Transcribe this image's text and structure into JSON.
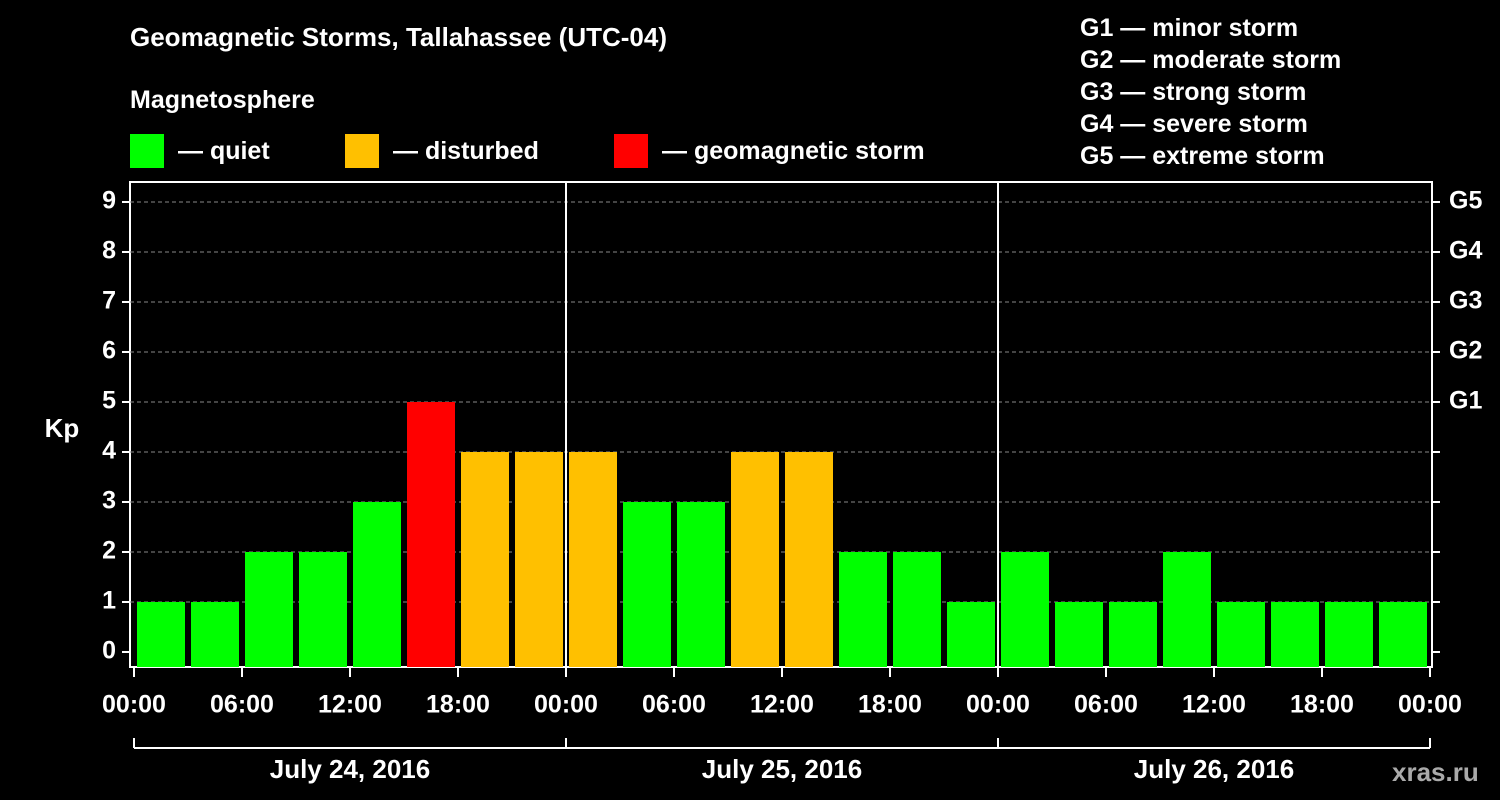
{
  "header": {
    "title": "Geomagnetic Storms, Tallahassee (UTC-04)",
    "magnetosphere_title": "Magnetosphere"
  },
  "legend": [
    {
      "label": "— quiet",
      "color": "#00ff00"
    },
    {
      "label": "— disturbed",
      "color": "#ffc000"
    },
    {
      "label": "— geomagnetic storm",
      "color": "#ff0000"
    }
  ],
  "storm_scale": [
    "G1 — minor storm",
    "G2 — moderate storm",
    "G3 — strong storm",
    "G4 — severe storm",
    "G5 — extreme storm"
  ],
  "watermark": "xras.ru",
  "chart_data": {
    "type": "bar",
    "title": "Geomagnetic Storms, Tallahassee (UTC-04)",
    "ylabel": "Kp",
    "ylim": [
      0,
      9
    ],
    "y_ticks": [
      "0",
      "1",
      "2",
      "3",
      "4",
      "5",
      "6",
      "7",
      "8",
      "9"
    ],
    "right_ticks": [
      {
        "kp": 5,
        "label": "G1"
      },
      {
        "kp": 6,
        "label": "G2"
      },
      {
        "kp": 7,
        "label": "G3"
      },
      {
        "kp": 8,
        "label": "G4"
      },
      {
        "kp": 9,
        "label": "G5"
      }
    ],
    "x_tick_labels": [
      "00:00",
      "06:00",
      "12:00",
      "18:00",
      "00:00",
      "06:00",
      "12:00",
      "18:00",
      "00:00",
      "06:00",
      "12:00",
      "18:00",
      "00:00"
    ],
    "days": [
      "July 24, 2016",
      "July 25, 2016",
      "July 26, 2016"
    ],
    "colors": {
      "quiet": "#00ff00",
      "disturbed": "#ffc000",
      "storm": "#ff0000"
    },
    "grid": true,
    "bars": [
      {
        "day": "July 24, 2016",
        "start": "00:00",
        "kp": 1,
        "level": "quiet"
      },
      {
        "day": "July 24, 2016",
        "start": "03:00",
        "kp": 1,
        "level": "quiet"
      },
      {
        "day": "July 24, 2016",
        "start": "06:00",
        "kp": 2,
        "level": "quiet"
      },
      {
        "day": "July 24, 2016",
        "start": "09:00",
        "kp": 2,
        "level": "quiet"
      },
      {
        "day": "July 24, 2016",
        "start": "12:00",
        "kp": 3,
        "level": "quiet"
      },
      {
        "day": "July 24, 2016",
        "start": "15:00",
        "kp": 5,
        "level": "storm"
      },
      {
        "day": "July 24, 2016",
        "start": "18:00",
        "kp": 4,
        "level": "disturbed"
      },
      {
        "day": "July 24, 2016",
        "start": "21:00",
        "kp": 4,
        "level": "disturbed"
      },
      {
        "day": "July 25, 2016",
        "start": "00:00",
        "kp": 4,
        "level": "disturbed"
      },
      {
        "day": "July 25, 2016",
        "start": "03:00",
        "kp": 3,
        "level": "quiet"
      },
      {
        "day": "July 25, 2016",
        "start": "06:00",
        "kp": 3,
        "level": "quiet"
      },
      {
        "day": "July 25, 2016",
        "start": "09:00",
        "kp": 4,
        "level": "disturbed"
      },
      {
        "day": "July 25, 2016",
        "start": "12:00",
        "kp": 4,
        "level": "disturbed"
      },
      {
        "day": "July 25, 2016",
        "start": "15:00",
        "kp": 2,
        "level": "quiet"
      },
      {
        "day": "July 25, 2016",
        "start": "18:00",
        "kp": 2,
        "level": "quiet"
      },
      {
        "day": "July 25, 2016",
        "start": "21:00",
        "kp": 1,
        "level": "quiet"
      },
      {
        "day": "July 26, 2016",
        "start": "00:00",
        "kp": 2,
        "level": "quiet"
      },
      {
        "day": "July 26, 2016",
        "start": "03:00",
        "kp": 1,
        "level": "quiet"
      },
      {
        "day": "July 26, 2016",
        "start": "06:00",
        "kp": 1,
        "level": "quiet"
      },
      {
        "day": "July 26, 2016",
        "start": "09:00",
        "kp": 2,
        "level": "quiet"
      },
      {
        "day": "July 26, 2016",
        "start": "12:00",
        "kp": 1,
        "level": "quiet"
      },
      {
        "day": "July 26, 2016",
        "start": "15:00",
        "kp": 1,
        "level": "quiet"
      },
      {
        "day": "July 26, 2016",
        "start": "18:00",
        "kp": 1,
        "level": "quiet"
      },
      {
        "day": "July 26, 2016",
        "start": "21:00",
        "kp": 1,
        "level": "quiet"
      }
    ]
  }
}
